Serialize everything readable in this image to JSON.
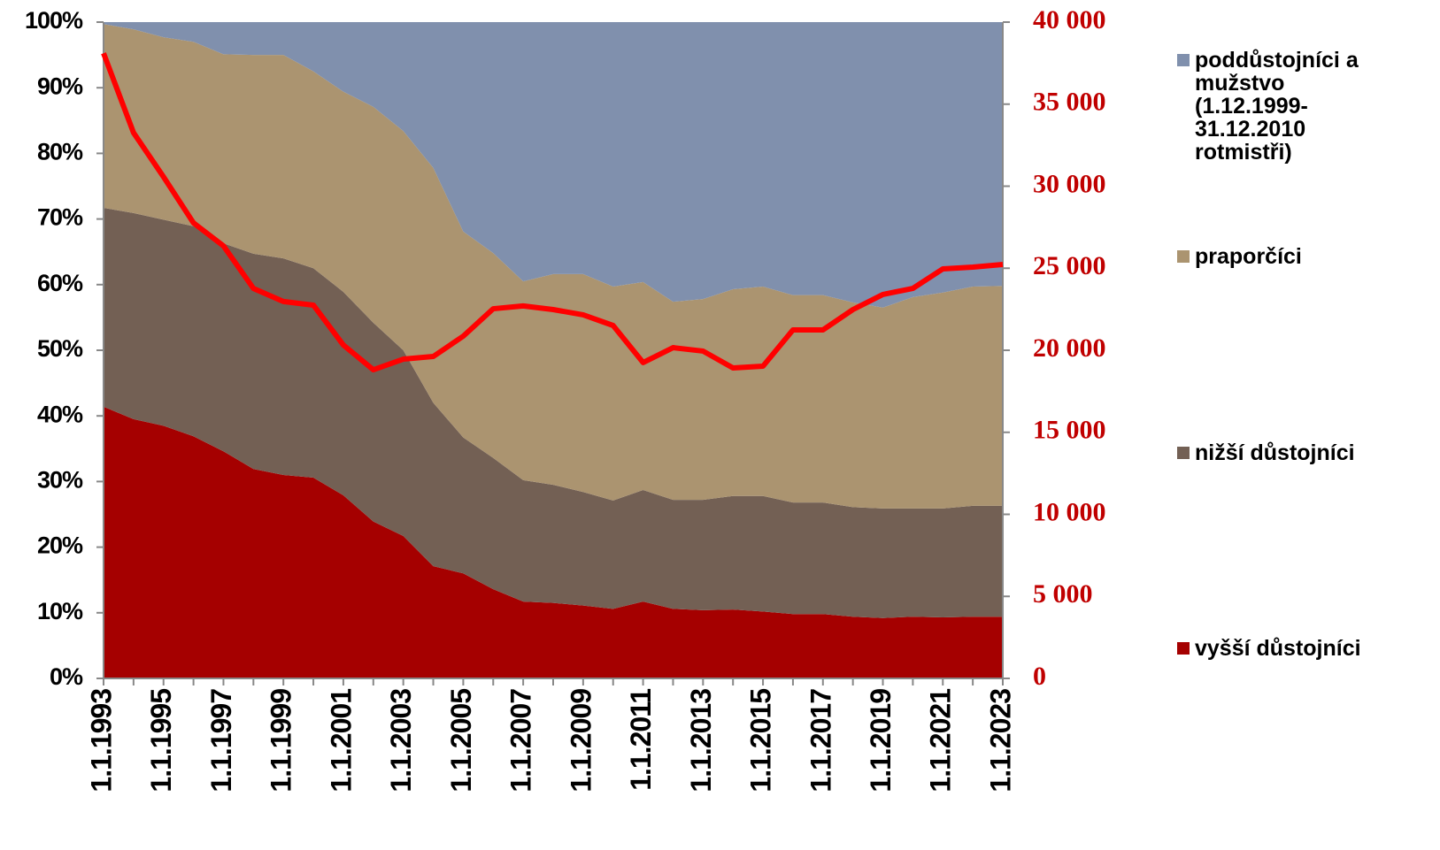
{
  "chart_data": {
    "type": "stacked_area_line",
    "categories": [
      "1.1.1993",
      null,
      "1.1.1995",
      null,
      "1.1.1997",
      null,
      "1.1.1999",
      null,
      "1.1.2001",
      null,
      "1.1.2003",
      null,
      "1.1.2005",
      null,
      "1.1.2007",
      null,
      "1.1.2009",
      null,
      "1.1.2011",
      null,
      "1.1.2013",
      null,
      "1.1.2015",
      null,
      "1.1.2017",
      null,
      "1.1.2019",
      null,
      "1.1.2021",
      null,
      "1.1.2023"
    ],
    "series": [
      {
        "name": "vyšší důstojníci",
        "color": "#a50000",
        "values": [
          41.4,
          39.5,
          38.5,
          36.9,
          34.6,
          31.9,
          31.0,
          30.6,
          27.9,
          23.9,
          21.7,
          17.1,
          16.0,
          13.6,
          11.7,
          11.5,
          11.1,
          10.6,
          11.7,
          10.6,
          10.4,
          10.5,
          10.2,
          9.8,
          9.8,
          9.4,
          9.2,
          9.4,
          9.3,
          9.4,
          9.4
        ]
      },
      {
        "name": "nižší důstojníci",
        "color": "#736054",
        "values": [
          30.3,
          31.4,
          31.4,
          32.0,
          31.7,
          32.8,
          33.0,
          31.9,
          31.0,
          30.3,
          28.3,
          24.9,
          20.7,
          20.0,
          18.5,
          18.0,
          17.3,
          16.5,
          17.0,
          16.6,
          16.8,
          17.3,
          17.6,
          17.0,
          17.0,
          16.7,
          16.7,
          16.5,
          16.6,
          16.9,
          16.9
        ]
      },
      {
        "name": "praporčíci",
        "color": "#ab9470",
        "values": [
          28.0,
          28.0,
          27.8,
          28.1,
          28.8,
          30.3,
          31.0,
          30.0,
          30.5,
          32.9,
          33.4,
          35.8,
          31.4,
          31.2,
          30.3,
          32.1,
          33.2,
          32.6,
          31.7,
          30.2,
          30.6,
          31.5,
          31.9,
          31.6,
          31.6,
          31.2,
          30.6,
          32.2,
          32.9,
          33.4,
          33.5
        ]
      },
      {
        "name": "poddůstojníci a mužstvo (1.12.1999-31.12.2010 rotmistři)",
        "color": "#8090ad",
        "values": [
          0.3,
          1.1,
          2.3,
          3.0,
          4.9,
          5.0,
          5.0,
          7.5,
          10.6,
          12.9,
          16.6,
          22.2,
          31.9,
          35.2,
          39.5,
          38.4,
          38.4,
          40.3,
          39.6,
          42.6,
          42.2,
          40.7,
          40.3,
          41.6,
          41.6,
          42.7,
          43.5,
          41.9,
          41.2,
          40.3,
          40.2
        ]
      },
      {
        "color": "#ff0000",
        "axis": "y2",
        "values": [
          38100,
          33260,
          30570,
          27760,
          26360,
          23770,
          22970,
          22750,
          20320,
          18810,
          19460,
          19620,
          20860,
          22530,
          22700,
          22480,
          22160,
          21510,
          19250,
          20160,
          19950,
          18920,
          19030,
          21240,
          21240,
          22480,
          23400,
          23770,
          24960,
          25070,
          25230
        ]
      }
    ],
    "ylim": [
      0,
      100
    ],
    "yticks": [
      {
        "value": 0,
        "label": "0%"
      },
      {
        "value": 10,
        "label": "10%"
      },
      {
        "value": 20,
        "label": "20%"
      },
      {
        "value": 30,
        "label": "30%"
      },
      {
        "value": 40,
        "label": "40%"
      },
      {
        "value": 50,
        "label": "50%"
      },
      {
        "value": 60,
        "label": "60%"
      },
      {
        "value": 70,
        "label": "70%"
      },
      {
        "value": 80,
        "label": "80%"
      },
      {
        "value": 90,
        "label": "90%"
      },
      {
        "value": 100,
        "label": "100%"
      }
    ],
    "y2lim": [
      0,
      40000
    ],
    "y2ticks": [
      0,
      {
        "value": 5000,
        "label": "5 000"
      },
      {
        "value": 10000,
        "label": "10 000"
      },
      {
        "value": 15000,
        "label": "15 000"
      },
      {
        "value": 20000,
        "label": "20 000"
      },
      {
        "value": 25000,
        "label": "25 000"
      },
      {
        "value": 30000,
        "label": "30 000"
      },
      {
        "value": 35000,
        "label": "35 000"
      },
      {
        "value": 40000,
        "label": "40 000"
      }
    ],
    "legend": "right"
  }
}
